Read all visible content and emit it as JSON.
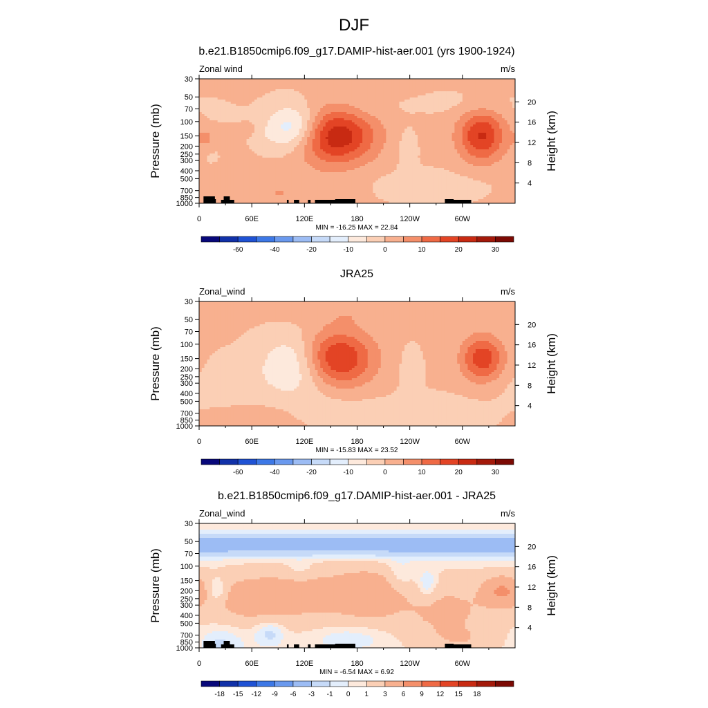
{
  "figure": {
    "title": "DJF"
  },
  "chart_data": [
    {
      "type": "heatmap",
      "panel_title": "b.e21.B1850cmip6.f09_g17.DAMIP-hist-aer.001 (yrs 1900-1924)",
      "left_string": "Zonal wind",
      "right_string": "m/s",
      "ylabel": "Pressure (mb)",
      "ylabel_right": "Height (km)",
      "xticks": [
        "0",
        "60E",
        "120E",
        "180",
        "120W",
        "60W"
      ],
      "yticks": [
        "30",
        "50",
        "70",
        "100",
        "150",
        "200",
        "250",
        "300",
        "400",
        "500",
        "700",
        "850",
        "1000"
      ],
      "yticks_right": [
        "20",
        "16",
        "12",
        "8",
        "4"
      ],
      "minmax": "MIN = -16.25  MAX =  22.84",
      "min": -16.25,
      "max": 22.84,
      "colorbar_labels": [
        "-60",
        "-40",
        "-20",
        "-10",
        "0",
        "10",
        "20",
        "30"
      ],
      "colors": [
        "#08087a",
        "#1131a8",
        "#1f52d4",
        "#3d78e6",
        "#6a99ee",
        "#9cbcf4",
        "#c6daf8",
        "#e3eefc",
        "#fde9dc",
        "#fbcfb5",
        "#f8b08f",
        "#f48f6a",
        "#ef6a45",
        "#e34425",
        "#c82a12",
        "#a3190a",
        "#7c0a04"
      ],
      "features": [
        {
          "kind": "max",
          "lon": 155,
          "p": 150,
          "value": 22.84
        },
        {
          "kind": "max",
          "lon": 322,
          "p": 150,
          "value": 19
        },
        {
          "kind": "min",
          "lon": 110,
          "p": 120,
          "value": -16.25
        }
      ]
    },
    {
      "type": "heatmap",
      "panel_title": "JRA25",
      "left_string": "Zonal_wind",
      "right_string": "m/s",
      "ylabel": "Pressure (mb)",
      "ylabel_right": "Height (km)",
      "xticks": [
        "0",
        "60E",
        "120E",
        "180",
        "120W",
        "60W"
      ],
      "yticks": [
        "30",
        "50",
        "70",
        "100",
        "150",
        "200",
        "250",
        "300",
        "400",
        "500",
        "700",
        "850",
        "1000"
      ],
      "yticks_right": [
        "20",
        "16",
        "12",
        "8",
        "4"
      ],
      "minmax": "MIN = -15.83  MAX =  23.52",
      "min": -15.83,
      "max": 23.52,
      "colorbar_labels": [
        "-60",
        "-40",
        "-20",
        "-10",
        "0",
        "10",
        "20",
        "30"
      ],
      "colors": [
        "#08087a",
        "#1131a8",
        "#1f52d4",
        "#3d78e6",
        "#6a99ee",
        "#9cbcf4",
        "#c6daf8",
        "#e3eefc",
        "#fde9dc",
        "#fbcfb5",
        "#f8b08f",
        "#f48f6a",
        "#ef6a45",
        "#e34425",
        "#c82a12",
        "#a3190a",
        "#7c0a04"
      ],
      "features": [
        {
          "kind": "max",
          "lon": 153,
          "p": 150,
          "value": 23.52
        },
        {
          "kind": "max",
          "lon": 323,
          "p": 150,
          "value": 18
        },
        {
          "kind": "min",
          "lon": 112,
          "p": 150,
          "value": -15.83
        }
      ]
    },
    {
      "type": "heatmap",
      "panel_title": "b.e21.B1850cmip6.f09_g17.DAMIP-hist-aer.001 - JRA25",
      "left_string": "Zonal_wind",
      "right_string": "m/s",
      "ylabel": "Pressure (mb)",
      "ylabel_right": "Height (km)",
      "xticks": [
        "0",
        "60E",
        "120E",
        "180",
        "120W",
        "60W"
      ],
      "yticks": [
        "30",
        "50",
        "70",
        "100",
        "150",
        "200",
        "250",
        "300",
        "400",
        "500",
        "700",
        "850",
        "1000"
      ],
      "yticks_right": [
        "20",
        "16",
        "12",
        "8",
        "4"
      ],
      "minmax": "MIN =  -6.54  MAX =   6.92",
      "min": -6.54,
      "max": 6.92,
      "colorbar_labels": [
        "-18",
        "-15",
        "-12",
        "-9",
        "-6",
        "-3",
        "-1",
        "0",
        "1",
        "3",
        "6",
        "9",
        "12",
        "15",
        "18"
      ],
      "colors": [
        "#08087a",
        "#1131a8",
        "#1f52d4",
        "#3d78e6",
        "#6a99ee",
        "#9cbcf4",
        "#c6daf8",
        "#e3eefc",
        "#fde9dc",
        "#fbcfb5",
        "#f8b08f",
        "#f48f6a",
        "#ef6a45",
        "#e34425",
        "#c82a12",
        "#a3190a",
        "#7c0a04"
      ],
      "features": [
        {
          "kind": "min",
          "lon": 185,
          "p": 50,
          "value": -6.54
        },
        {
          "kind": "max",
          "lon": 345,
          "p": 200,
          "value": 6.92
        }
      ]
    }
  ]
}
